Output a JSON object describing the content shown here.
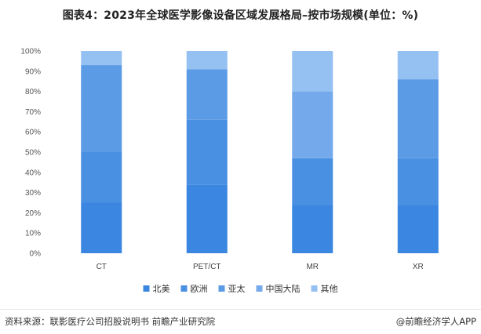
{
  "title": "图表4：2023年全球医学影像设备区域发展格局–按市场规模(单位：%)",
  "footer": {
    "source": "资料来源：联影医疗公司招股说明书 前瞻产业研究院",
    "brand": "@前瞻经济学人APP"
  },
  "chart_data": {
    "type": "bar",
    "stacked": true,
    "title": "图表4：2023年全球医学影像设备区域发展格局–按市场规模(单位：%)",
    "categories": [
      "CT",
      "PET/CT",
      "MR",
      "XR"
    ],
    "series": [
      {
        "name": "北美",
        "color": "#3b86e0",
        "values": [
          25,
          34,
          24,
          24
        ]
      },
      {
        "name": "欧洲",
        "color": "#4a90e2",
        "values": [
          25,
          32,
          23,
          23
        ]
      },
      {
        "name": "亚太",
        "color": "#5b9be6",
        "values": [
          43,
          25,
          0,
          39
        ]
      },
      {
        "name": "中国大陆",
        "color": "#74aaeb",
        "values": [
          0,
          0,
          33,
          0
        ]
      },
      {
        "name": "其他",
        "color": "#95c0f2",
        "values": [
          7,
          9,
          20,
          14
        ]
      }
    ],
    "yticks": [
      "0%",
      "10%",
      "20%",
      "30%",
      "40%",
      "50%",
      "60%",
      "70%",
      "80%",
      "90%",
      "100%"
    ],
    "ylim": [
      0,
      100
    ],
    "grid": false,
    "legend_position": "bottom"
  }
}
